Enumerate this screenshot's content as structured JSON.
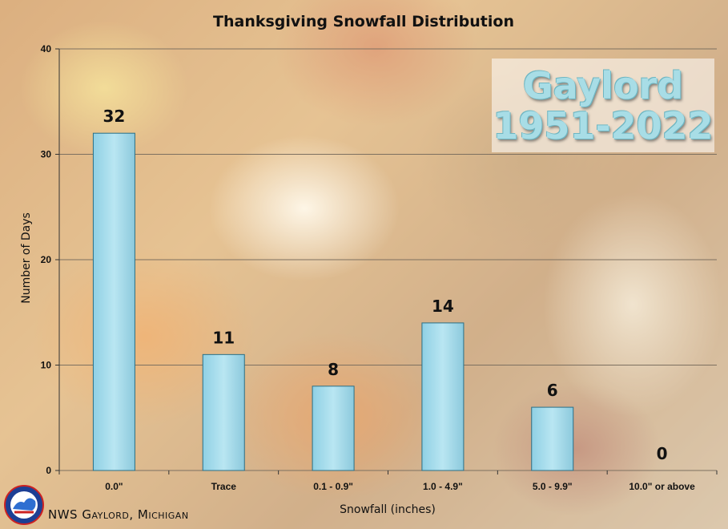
{
  "chart_data": {
    "type": "bar",
    "title": "Thanksgiving Snowfall Distribution",
    "xlabel": "Snowfall (inches)",
    "ylabel": "Number of Days",
    "categories": [
      "0.0\"",
      "Trace",
      "0.1 - 0.9\"",
      "1.0 - 4.9\"",
      "5.0 - 9.9\"",
      "10.0\" or above"
    ],
    "values": [
      32,
      11,
      8,
      14,
      6,
      0
    ],
    "data_labels": [
      "32",
      "11",
      "8",
      "14",
      "6",
      "0"
    ],
    "ylim": [
      0,
      40
    ],
    "yticks": [
      0,
      10,
      20,
      30,
      40
    ],
    "grid": true,
    "bar_color": "#a9dfee"
  },
  "overlay": {
    "location_lines": [
      "Gaylord",
      "1951-2022"
    ],
    "text_color": "#a8dde6"
  },
  "footer": {
    "credit": "NWS Gaylord, Michigan",
    "logo_icon": "nws-logo-icon"
  }
}
